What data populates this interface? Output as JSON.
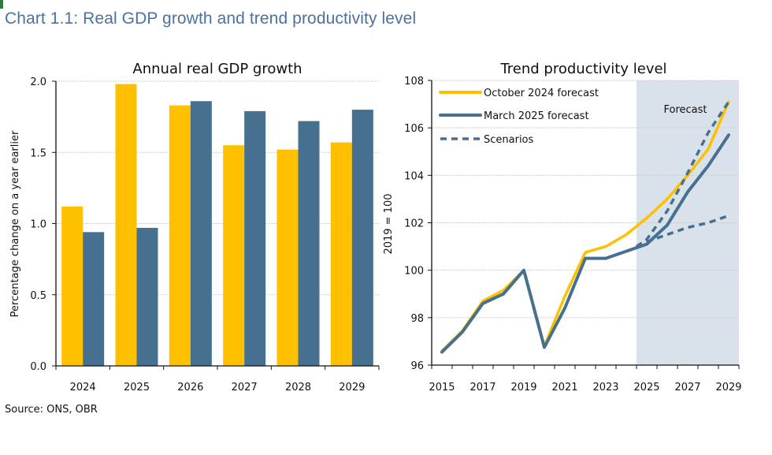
{
  "page": {
    "title": "Chart 1.1: Real GDP growth and trend productivity level",
    "source": "Source: ONS, OBR"
  },
  "colors": {
    "october_2024": "#FFC000",
    "march_2025": "#467090",
    "forecast_shade": "#D9E1EA",
    "title": "#4A72A0"
  },
  "chart_data": [
    {
      "type": "bar",
      "title": "Annual real GDP growth",
      "xlabel": "",
      "ylabel": "Percentage change on a year earlier",
      "ylim": [
        0,
        2.0
      ],
      "yticks": [
        "0.0",
        "0.5",
        "1.0",
        "1.5",
        "2.0"
      ],
      "grid": true,
      "categories": [
        "2024",
        "2025",
        "2026",
        "2027",
        "2028",
        "2029"
      ],
      "series": [
        {
          "name": "October 2024 forecast",
          "color": "#FFC000",
          "values": [
            1.12,
            1.98,
            1.83,
            1.55,
            1.52,
            1.57
          ]
        },
        {
          "name": "March 2025 forecast",
          "color": "#467090",
          "values": [
            0.94,
            0.97,
            1.86,
            1.79,
            1.72,
            1.8
          ]
        }
      ]
    },
    {
      "type": "line",
      "title": "Trend productivity level",
      "xlabel": "",
      "ylabel": "2019 = 100",
      "ylim": [
        96,
        108
      ],
      "xlim": [
        2015,
        2029
      ],
      "yticks": [
        "96",
        "98",
        "100",
        "102",
        "104",
        "106",
        "108"
      ],
      "xticks": [
        "2015",
        "2017",
        "2019",
        "2021",
        "2023",
        "2025",
        "2027",
        "2029"
      ],
      "grid": true,
      "legend_position": "top-left",
      "forecast_region": {
        "from": 2024.5,
        "to": 2029.5,
        "label": "Forecast"
      },
      "series": [
        {
          "name": "October 2024 forecast",
          "style": "solid",
          "color": "#FFC000",
          "x": [
            2015,
            2016,
            2017,
            2018,
            2019,
            2020,
            2021,
            2022,
            2023,
            2024,
            2025,
            2026,
            2027,
            2028,
            2029
          ],
          "values": [
            96.6,
            97.45,
            98.7,
            99.15,
            100.0,
            96.8,
            98.9,
            100.75,
            101.0,
            101.5,
            102.2,
            103.0,
            104.0,
            105.1,
            107.1
          ]
        },
        {
          "name": "March 2025 forecast",
          "style": "solid",
          "color": "#467090",
          "x": [
            2015,
            2016,
            2017,
            2018,
            2019,
            2020,
            2021,
            2022,
            2023,
            2024,
            2025,
            2026,
            2027,
            2028,
            2029
          ],
          "values": [
            96.55,
            97.4,
            98.6,
            99.0,
            100.0,
            96.75,
            98.4,
            100.5,
            100.5,
            100.8,
            101.1,
            101.9,
            103.3,
            104.4,
            105.7
          ]
        },
        {
          "name": "Scenarios (upper)",
          "style": "dashed",
          "color": "#467090",
          "x": [
            2024.5,
            2025,
            2026,
            2027,
            2028,
            2029
          ],
          "values": [
            101.0,
            101.3,
            102.5,
            104.1,
            105.8,
            107.1
          ]
        },
        {
          "name": "Scenarios (lower)",
          "style": "dashed",
          "color": "#467090",
          "x": [
            2024.5,
            2025,
            2026,
            2027,
            2028,
            2029
          ],
          "values": [
            101.0,
            101.2,
            101.5,
            101.8,
            102.0,
            102.3
          ]
        }
      ],
      "legend": [
        {
          "label": "October 2024 forecast",
          "style": "solid",
          "color": "#FFC000"
        },
        {
          "label": "March 2025 forecast",
          "style": "solid",
          "color": "#467090"
        },
        {
          "label": "Scenarios",
          "style": "dashed",
          "color": "#467090"
        }
      ]
    }
  ]
}
